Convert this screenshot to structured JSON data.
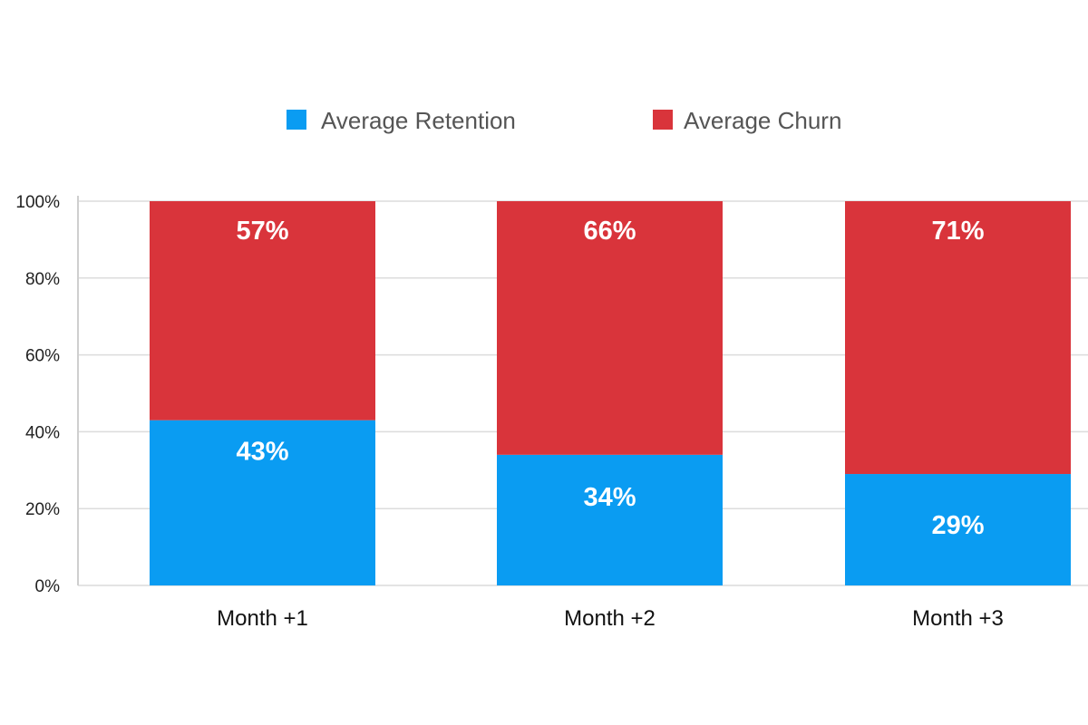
{
  "chart_data": {
    "type": "bar",
    "stacked": true,
    "categories": [
      "Month +1",
      "Month +2",
      "Month +3"
    ],
    "series": [
      {
        "name": "Average Retention",
        "values": [
          43,
          34,
          29
        ],
        "color": "#0a9cf2"
      },
      {
        "name": "Average Churn",
        "values": [
          57,
          66,
          71
        ],
        "color": "#d9343b"
      }
    ],
    "value_labels": [
      [
        "43%",
        "34%",
        "29%"
      ],
      [
        "57%",
        "66%",
        "71%"
      ]
    ],
    "ylim": [
      0,
      100
    ],
    "yticks": [
      0,
      20,
      40,
      60,
      80,
      100
    ],
    "ytick_labels": [
      "0%",
      "20%",
      "40%",
      "60%",
      "80%",
      "100%"
    ],
    "grid": true,
    "legend_position": "top-center",
    "title": "",
    "xlabel": "",
    "ylabel": ""
  }
}
